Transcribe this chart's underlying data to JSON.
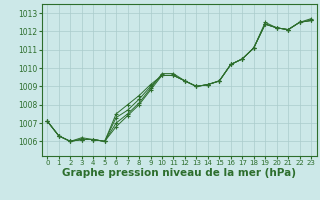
{
  "background_color": "#cce8e8",
  "grid_color": "#aacccc",
  "line_color": "#2d6e2d",
  "marker_color": "#2d6e2d",
  "xlabel": "Graphe pression niveau de la mer (hPa)",
  "xlabel_fontsize": 7.5,
  "xlim": [
    -0.5,
    23.5
  ],
  "ylim": [
    1005.2,
    1013.5
  ],
  "yticks": [
    1006,
    1007,
    1008,
    1009,
    1010,
    1011,
    1012,
    1013
  ],
  "xticks": [
    0,
    1,
    2,
    3,
    4,
    5,
    6,
    7,
    8,
    9,
    10,
    11,
    12,
    13,
    14,
    15,
    16,
    17,
    18,
    19,
    20,
    21,
    22,
    23
  ],
  "series": [
    [
      1007.1,
      1006.3,
      1006.0,
      1006.1,
      1006.1,
      1006.0,
      1006.8,
      1007.4,
      1008.0,
      1008.8,
      1009.6,
      1009.6,
      1009.3,
      1009.0,
      1009.1,
      1009.3,
      1010.2,
      1010.5,
      1011.1,
      1012.4,
      1012.2,
      1012.1,
      1012.5,
      1012.6
    ],
    [
      1007.1,
      1006.3,
      1006.0,
      1006.1,
      1006.1,
      1006.0,
      1007.0,
      1007.5,
      1008.1,
      1008.9,
      1009.7,
      1009.7,
      1009.3,
      1009.0,
      1009.1,
      1009.3,
      1010.2,
      1010.5,
      1011.1,
      1012.4,
      1012.2,
      1012.1,
      1012.5,
      1012.6
    ],
    [
      1007.1,
      1006.3,
      1006.0,
      1006.1,
      1006.1,
      1006.0,
      1007.3,
      1007.7,
      1008.3,
      1009.0,
      1009.6,
      1009.6,
      1009.3,
      1009.0,
      1009.1,
      1009.3,
      1010.2,
      1010.5,
      1011.1,
      1012.4,
      1012.2,
      1012.1,
      1012.5,
      1012.6
    ],
    [
      1007.1,
      1006.3,
      1006.0,
      1006.2,
      1006.1,
      1006.0,
      1007.5,
      1008.0,
      1008.5,
      1009.1,
      1009.6,
      1009.6,
      1009.3,
      1009.0,
      1009.1,
      1009.3,
      1010.2,
      1010.5,
      1011.1,
      1012.5,
      1012.2,
      1012.1,
      1012.5,
      1012.7
    ]
  ]
}
